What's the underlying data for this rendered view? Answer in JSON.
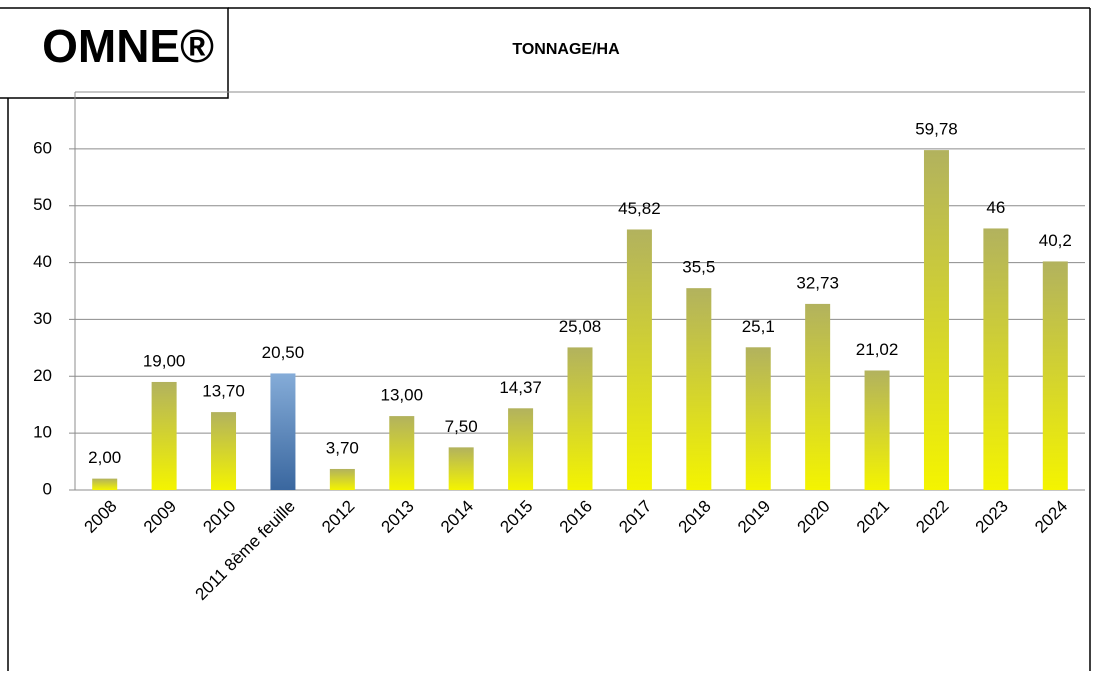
{
  "logo": "OMNE®",
  "chart_data": {
    "type": "bar",
    "title": "TONNAGE/HA",
    "categories": [
      "2008",
      "2009",
      "2010",
      "2011 8ème feuille",
      "2012",
      "2013",
      "2014",
      "2015",
      "2016",
      "2017",
      "2018",
      "2019",
      "2020",
      "2021",
      "2022",
      "2023",
      "2024"
    ],
    "values": [
      2,
      19,
      13.7,
      20.5,
      3.7,
      13,
      7.5,
      14.37,
      25.08,
      45.82,
      35.5,
      25.1,
      32.73,
      21.02,
      59.78,
      46,
      40.2
    ],
    "value_labels": [
      "2,00",
      "19,00",
      "13,70",
      "20,50",
      "3,70",
      "13,00",
      "7,50",
      "14,37",
      "25,08",
      "45,82",
      "35,5",
      "25,1",
      "32,73",
      "21,02",
      "59,78",
      "46",
      "40,2"
    ],
    "colors": [
      [
        "#b2b25e",
        "#f4f400"
      ],
      [
        "#b2b25e",
        "#f4f400"
      ],
      [
        "#b2b25e",
        "#f4f400"
      ],
      [
        "#85acd8",
        "#3a679f"
      ],
      [
        "#b2b25e",
        "#f4f400"
      ],
      [
        "#b2b25e",
        "#f4f400"
      ],
      [
        "#b2b25e",
        "#f4f400"
      ],
      [
        "#b2b25e",
        "#f4f400"
      ],
      [
        "#b2b25e",
        "#f4f400"
      ],
      [
        "#b2b25e",
        "#f4f400"
      ],
      [
        "#b2b25e",
        "#f4f400"
      ],
      [
        "#b2b25e",
        "#f4f400"
      ],
      [
        "#b2b25e",
        "#f4f400"
      ],
      [
        "#b2b25e",
        "#f4f400"
      ],
      [
        "#b2b25e",
        "#f4f400"
      ],
      [
        "#b2b25e",
        "#f4f400"
      ],
      [
        "#b2b25e",
        "#f4f400"
      ]
    ],
    "ylim": [
      0,
      70
    ],
    "yticks": [
      0,
      10,
      20,
      30,
      40,
      50,
      60
    ],
    "grid": true
  }
}
